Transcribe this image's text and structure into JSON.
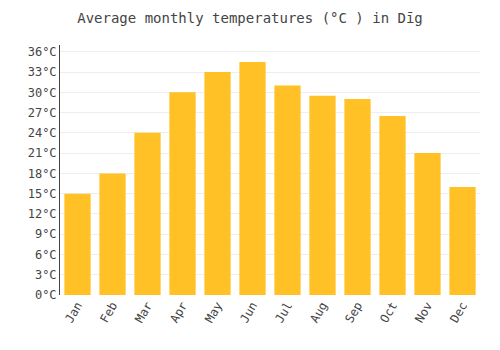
{
  "chart_data": {
    "type": "bar",
    "title": "Average monthly temperatures (°C ) in Dīg",
    "categories": [
      "Jan",
      "Feb",
      "Mar",
      "Apr",
      "May",
      "Jun",
      "Jul",
      "Aug",
      "Sep",
      "Oct",
      "Nov",
      "Dec"
    ],
    "values": [
      15,
      18,
      24,
      30,
      33,
      34.5,
      31,
      29.5,
      29,
      26.5,
      21,
      16
    ],
    "color": "#FFC125",
    "ylim": [
      0,
      37
    ],
    "yticks": [
      {
        "value": 0,
        "label": "0°C"
      },
      {
        "value": 3,
        "label": "3°C"
      },
      {
        "value": 6,
        "label": "6°C"
      },
      {
        "value": 9,
        "label": "9°C"
      },
      {
        "value": 12,
        "label": "12°C"
      },
      {
        "value": 15,
        "label": "15°C"
      },
      {
        "value": 18,
        "label": "18°C"
      },
      {
        "value": 21,
        "label": "21°C"
      },
      {
        "value": 24,
        "label": "24°C"
      },
      {
        "value": 27,
        "label": "27°C"
      },
      {
        "value": 30,
        "label": "30°C"
      },
      {
        "value": 33,
        "label": "33°C"
      },
      {
        "value": 36,
        "label": "36°C"
      }
    ],
    "grid": true
  }
}
